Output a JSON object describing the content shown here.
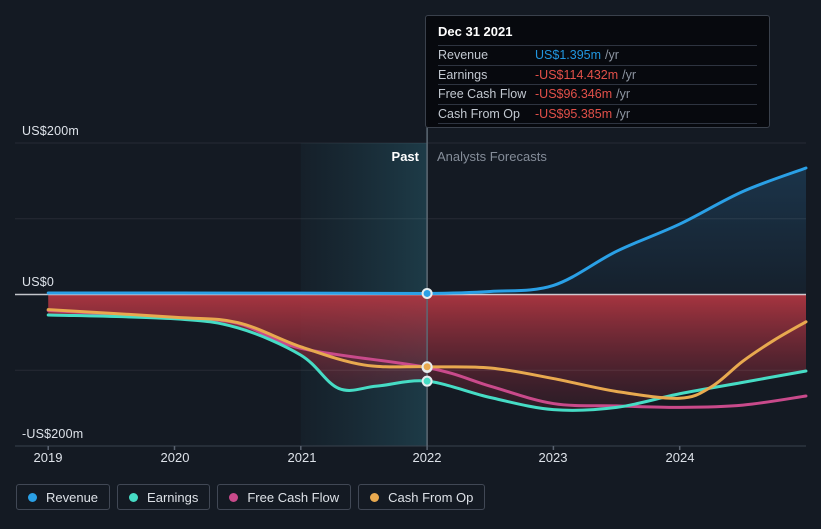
{
  "tooltip": {
    "title": "Dec 31 2021",
    "rows": [
      {
        "label": "Revenue",
        "value": "US$1.395m",
        "suffix": "/yr",
        "value_color": "#2196df"
      },
      {
        "label": "Earnings",
        "value": "-US$114.432m",
        "suffix": "/yr",
        "value_color": "#e25049"
      },
      {
        "label": "Free Cash Flow",
        "value": "-US$96.346m",
        "suffix": "/yr",
        "value_color": "#e25049"
      },
      {
        "label": "Cash From Op",
        "value": "-US$95.385m",
        "suffix": "/yr",
        "value_color": "#e25049"
      }
    ]
  },
  "chart": {
    "past_label": "Past",
    "forecast_label": "Analysts Forecasts",
    "y_axis_labels": [
      "US$200m",
      "US$0",
      "-US$200m"
    ],
    "x_axis_labels": [
      "2019",
      "2020",
      "2021",
      "2022",
      "2023",
      "2024"
    ]
  },
  "legend": [
    {
      "label": "Revenue",
      "color": "#2aa0e6"
    },
    {
      "label": "Earnings",
      "color": "#46dcc5"
    },
    {
      "label": "Free Cash Flow",
      "color": "#c94a8b"
    },
    {
      "label": "Cash From Op",
      "color": "#e8a94f"
    }
  ],
  "chart_data": {
    "type": "line",
    "units": "US$ millions per year",
    "x_domain": [
      2018.737,
      2025.0
    ],
    "y_domain": [
      -200,
      200
    ],
    "x_ticks": [
      2019,
      2020,
      2021,
      2022,
      2023,
      2024
    ],
    "y_ticks": [
      {
        "value": 200,
        "label": "US$200m"
      },
      {
        "value": 0,
        "label": "US$0"
      },
      {
        "value": -200,
        "label": "-US$200m"
      }
    ],
    "y_gridlines": [
      200,
      100,
      0,
      -100,
      -200
    ],
    "past_forecast_divider_x": 2022,
    "highlight_band_x": [
      2021,
      2022
    ],
    "marker_x": 2022,
    "legend_position": "bottom",
    "series": [
      {
        "name": "Revenue",
        "color": "#2aa0e6",
        "area": "blue",
        "points": [
          [
            2019,
            2
          ],
          [
            2020,
            2
          ],
          [
            2021,
            1.8
          ],
          [
            2022,
            1.395
          ],
          [
            2022.5,
            4
          ],
          [
            2023,
            12
          ],
          [
            2023.5,
            57
          ],
          [
            2024,
            93
          ],
          [
            2024.5,
            136
          ],
          [
            2025,
            167
          ]
        ]
      },
      {
        "name": "Earnings",
        "color": "#46dcc5",
        "area": "red",
        "points": [
          [
            2019,
            -27
          ],
          [
            2020,
            -32
          ],
          [
            2020.5,
            -44
          ],
          [
            2021,
            -80
          ],
          [
            2021.3,
            -124
          ],
          [
            2021.6,
            -121
          ],
          [
            2022,
            -114.432
          ],
          [
            2022.5,
            -136
          ],
          [
            2023,
            -152
          ],
          [
            2023.5,
            -149
          ],
          [
            2024,
            -131
          ],
          [
            2024.5,
            -116
          ],
          [
            2025,
            -101
          ]
        ]
      },
      {
        "name": "Free Cash Flow",
        "color": "#c94a8b",
        "points": [
          [
            2019,
            -21
          ],
          [
            2020,
            -31
          ],
          [
            2020.5,
            -38
          ],
          [
            2021,
            -71
          ],
          [
            2022,
            -96.346
          ],
          [
            2022.5,
            -121
          ],
          [
            2023,
            -144
          ],
          [
            2023.5,
            -147
          ],
          [
            2024,
            -149
          ],
          [
            2024.5,
            -146
          ],
          [
            2025,
            -134
          ]
        ]
      },
      {
        "name": "Cash From Op",
        "color": "#e8a94f",
        "points": [
          [
            2019,
            -20
          ],
          [
            2020,
            -30
          ],
          [
            2020.5,
            -37
          ],
          [
            2021,
            -69
          ],
          [
            2021.5,
            -93
          ],
          [
            2022,
            -95.385
          ],
          [
            2022.5,
            -97
          ],
          [
            2023,
            -111
          ],
          [
            2023.5,
            -128
          ],
          [
            2024,
            -137
          ],
          [
            2024.25,
            -122
          ],
          [
            2024.5,
            -88
          ],
          [
            2024.75,
            -60
          ],
          [
            2025,
            -36
          ]
        ]
      }
    ]
  }
}
